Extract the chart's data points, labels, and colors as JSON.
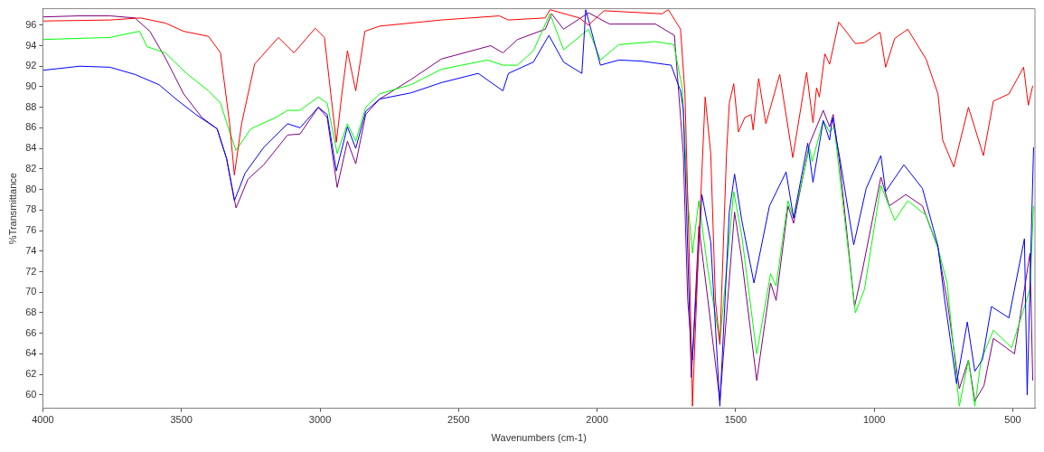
{
  "chart_data": {
    "type": "line",
    "xlabel": "Wavenumbers (cm-1)",
    "ylabel": "%Transmittance",
    "xlim": [
      4000,
      420
    ],
    "xticks": [
      4000,
      3500,
      3000,
      2500,
      2000,
      1500,
      1000,
      500
    ],
    "ylim": [
      58.7,
      97.6
    ],
    "yticks": [
      60,
      62,
      64,
      66,
      68,
      70,
      72,
      74,
      76,
      78,
      80,
      82,
      84,
      86,
      88,
      90,
      92,
      94,
      96
    ],
    "grid": false,
    "legend": false,
    "marker": "none",
    "line_style": "solid",
    "series": [
      {
        "color": "#ff0000",
        "x": [
          4000,
          3758,
          3648,
          3558,
          3492,
          3402,
          3359,
          3326,
          3309,
          3283,
          3236,
          3150,
          3094,
          3017,
          2984,
          2961,
          2941,
          2921,
          2901,
          2871,
          2838,
          2785,
          2562,
          2353,
          2320,
          2187,
          2170,
          2064,
          2031,
          1975,
          1766,
          1743,
          1699,
          1683,
          1666,
          1656,
          1633,
          1610,
          1590,
          1573,
          1557,
          1533,
          1523,
          1507,
          1490,
          1467,
          1444,
          1437,
          1417,
          1391,
          1341,
          1294,
          1244,
          1221,
          1208,
          1198,
          1178,
          1161,
          1128,
          1068,
          1035,
          979,
          959,
          926,
          879,
          813,
          770,
          753,
          713,
          660,
          606,
          570,
          514,
          461,
          444,
          428
        ],
        "values": [
          96.4,
          96.5,
          96.7,
          96.2,
          95.4,
          94.9,
          93.3,
          86.4,
          81.4,
          86.4,
          92.2,
          94.8,
          93.3,
          95.7,
          94.8,
          89.3,
          84.6,
          89.3,
          93.5,
          89.6,
          95.4,
          95.9,
          96.5,
          96.9,
          96.5,
          96.7,
          97.5,
          96.7,
          96.0,
          97.4,
          97.1,
          97.5,
          95.6,
          89.3,
          72.1,
          58.9,
          74.9,
          89.0,
          83.5,
          69.2,
          64.9,
          83.5,
          88.4,
          90.3,
          85.6,
          87.0,
          87.3,
          85.8,
          90.8,
          86.4,
          91.2,
          83.1,
          91.4,
          86.5,
          89.9,
          89.0,
          93.2,
          92.2,
          96.3,
          94.2,
          94.3,
          95.3,
          91.9,
          94.7,
          95.6,
          92.7,
          89.3,
          84.8,
          82.2,
          88.0,
          83.3,
          88.6,
          89.3,
          91.9,
          88.2,
          90.1
        ]
      },
      {
        "color": "#0000ff",
        "x": [
          4000,
          3867,
          3758,
          3668,
          3581,
          3515,
          3448,
          3371,
          3337,
          3309,
          3270,
          3203,
          3117,
          3072,
          3006,
          2974,
          2941,
          2901,
          2871,
          2835,
          2785,
          2672,
          2562,
          2429,
          2340,
          2320,
          2230,
          2174,
          2121,
          2055,
          2041,
          1988,
          1922,
          1842,
          1733,
          1699,
          1689,
          1677,
          1660,
          1622,
          1590,
          1557,
          1523,
          1504,
          1478,
          1434,
          1378,
          1318,
          1291,
          1240,
          1221,
          1184,
          1161,
          1151,
          1124,
          1074,
          1029,
          976,
          959,
          893,
          826,
          770,
          747,
          703,
          664,
          637,
          610,
          577,
          514,
          458,
          448,
          425
        ],
        "values": [
          91.6,
          92.0,
          91.9,
          91.2,
          90.2,
          88.7,
          87.3,
          85.9,
          83.0,
          78.9,
          81.6,
          84.1,
          86.4,
          86.0,
          88.0,
          87.3,
          81.8,
          86.1,
          84.0,
          87.6,
          88.8,
          89.4,
          90.4,
          91.3,
          89.6,
          91.3,
          92.4,
          95.0,
          92.4,
          91.3,
          97.5,
          92.1,
          92.6,
          92.5,
          92.1,
          89.6,
          87.8,
          77.8,
          61.7,
          79.5,
          74.9,
          58.9,
          77.8,
          81.5,
          77.0,
          70.9,
          78.4,
          81.7,
          77.2,
          84.5,
          80.7,
          86.7,
          84.8,
          87.0,
          83.0,
          74.6,
          80.1,
          83.3,
          79.8,
          82.4,
          80.1,
          74.5,
          69.5,
          61.1,
          67.1,
          62.3,
          63.4,
          68.6,
          67.5,
          75.2,
          60.0,
          84.1
        ]
      },
      {
        "color": "#00ff00",
        "x": [
          4000,
          3758,
          3651,
          3624,
          3558,
          3482,
          3402,
          3359,
          3326,
          3303,
          3250,
          3160,
          3117,
          3072,
          3006,
          2974,
          2938,
          2901,
          2871,
          2835,
          2785,
          2672,
          2562,
          2396,
          2340,
          2287,
          2230,
          2170,
          2121,
          2031,
          1988,
          1922,
          1789,
          1723,
          1693,
          1673,
          1656,
          1633,
          1600,
          1557,
          1507,
          1478,
          1424,
          1374,
          1354,
          1311,
          1291,
          1234,
          1224,
          1184,
          1161,
          1144,
          1124,
          1068,
          1035,
          976,
          926,
          879,
          813,
          770,
          737,
          693,
          660,
          637,
          614,
          570,
          504,
          438,
          425
        ],
        "values": [
          94.6,
          94.8,
          95.4,
          93.9,
          93.3,
          91.3,
          89.6,
          88.4,
          85.6,
          83.8,
          85.9,
          87.0,
          87.7,
          87.7,
          89.0,
          88.4,
          83.5,
          86.4,
          84.7,
          88.0,
          89.3,
          90.2,
          91.7,
          92.6,
          92.1,
          92.1,
          93.5,
          97.1,
          93.6,
          95.6,
          92.6,
          94.1,
          94.4,
          94.1,
          89.9,
          78.9,
          73.8,
          78.9,
          72.1,
          65.2,
          79.8,
          75.5,
          64.0,
          71.8,
          70.6,
          78.9,
          77.2,
          84.1,
          82.7,
          86.7,
          85.6,
          86.1,
          81.2,
          68.0,
          70.3,
          80.4,
          77.0,
          78.9,
          77.5,
          74.3,
          70.9,
          58.9,
          63.4,
          58.9,
          63.4,
          66.3,
          64.6,
          70.3,
          78.4
        ]
      },
      {
        "color": "#800080",
        "x": [
          4000,
          3867,
          3758,
          3668,
          3614,
          3558,
          3492,
          3426,
          3371,
          3337,
          3303,
          3260,
          3203,
          3117,
          3072,
          3006,
          2974,
          2938,
          2901,
          2871,
          2835,
          2785,
          2672,
          2562,
          2384,
          2340,
          2287,
          2187,
          2164,
          2121,
          2031,
          1955,
          1789,
          1721,
          1689,
          1673,
          1656,
          1633,
          1600,
          1557,
          1504,
          1478,
          1424,
          1374,
          1354,
          1311,
          1291,
          1234,
          1184,
          1161,
          1148,
          1124,
          1071,
          1045,
          976,
          946,
          886,
          826,
          770,
          737,
          693,
          660,
          637,
          604,
          570,
          494,
          438,
          428
        ],
        "values": [
          96.8,
          96.9,
          96.9,
          96.7,
          95.4,
          92.8,
          89.3,
          87.0,
          85.9,
          83.0,
          78.2,
          81.0,
          82.4,
          85.3,
          85.4,
          88.0,
          87.0,
          80.2,
          84.7,
          82.5,
          87.3,
          88.8,
          90.7,
          92.7,
          94.0,
          93.3,
          94.6,
          95.6,
          97.1,
          95.6,
          97.2,
          96.1,
          96.1,
          95.0,
          83.5,
          69.2,
          63.4,
          76.4,
          69.2,
          59.4,
          77.8,
          73.2,
          61.4,
          70.9,
          69.2,
          78.4,
          76.7,
          84.4,
          87.7,
          86.1,
          87.3,
          82.4,
          68.6,
          71.8,
          81.2,
          78.4,
          79.5,
          78.4,
          74.3,
          69.2,
          60.6,
          63.4,
          59.4,
          60.9,
          65.5,
          64.0,
          73.8,
          61.4
        ]
      }
    ]
  }
}
